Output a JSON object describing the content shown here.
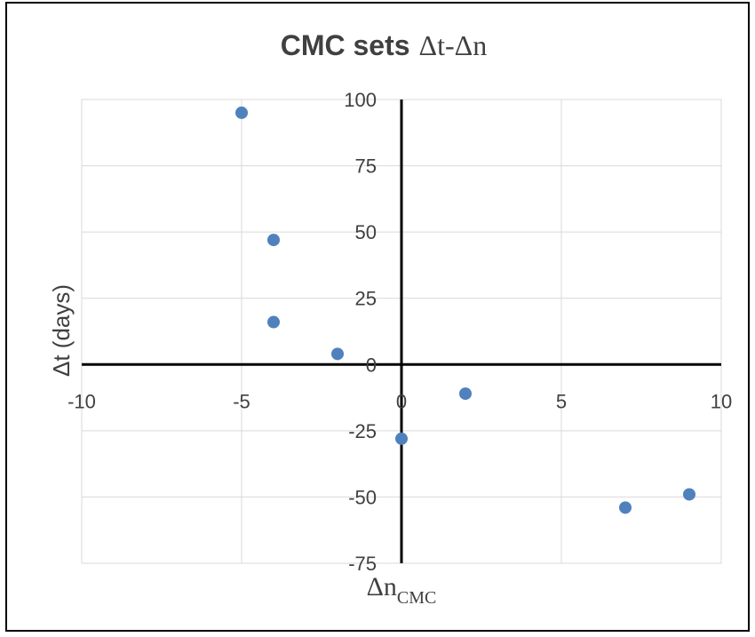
{
  "chart_data": {
    "type": "scatter",
    "title": "CMC sets",
    "title_suffix": "Δt-Δn",
    "xlabel": "Δn",
    "xlabel_subscript": "CMC",
    "ylabel": "Δt (days)",
    "xlim": [
      -10,
      10
    ],
    "ylim": [
      -75,
      100
    ],
    "xticks": [
      "-10",
      "-5",
      "0",
      "5",
      "10"
    ],
    "yticks": [
      "100",
      "75",
      "50",
      "25",
      "0",
      "-25",
      "-50",
      "-75"
    ],
    "grid": true,
    "marker_color": "#4f81bd",
    "axis_color": "#000000",
    "grid_color": "#d9d9d9",
    "x": [
      -5,
      -4,
      -4,
      -2,
      0,
      2,
      7,
      9
    ],
    "y": [
      95,
      47,
      16,
      4,
      -28,
      -11,
      -54,
      -49
    ]
  }
}
